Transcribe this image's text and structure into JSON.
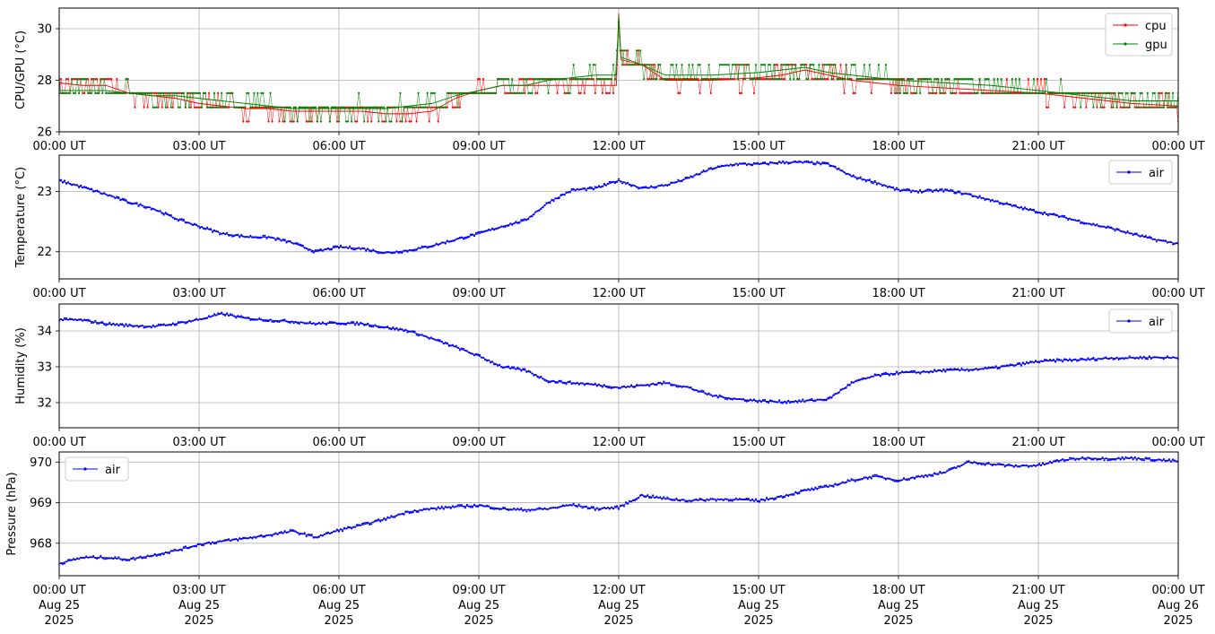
{
  "chart_data": [
    {
      "type": "line",
      "ylabel": "CPU/GPU (°C)",
      "ylim": [
        26,
        30.8
      ],
      "yticks": [
        26,
        28,
        30
      ],
      "legend_position": "upper-right",
      "grid": true,
      "series": [
        {
          "name": "cpu",
          "color": "#ff0000",
          "x": [
            0,
            0.5,
            1,
            1.5,
            2,
            2.5,
            3,
            3.5,
            4,
            4.5,
            5,
            5.5,
            6,
            6.5,
            7,
            7.5,
            8,
            8.5,
            9,
            9.5,
            10,
            10.5,
            11,
            11.5,
            11.95,
            12,
            12.05,
            12.5,
            13,
            14,
            15,
            15.5,
            16,
            16.5,
            17,
            18,
            19,
            20,
            21,
            22,
            23,
            24
          ],
          "y": [
            27.9,
            27.8,
            27.8,
            27.5,
            27.4,
            27.3,
            27.1,
            27.0,
            26.9,
            26.9,
            26.8,
            26.8,
            26.8,
            26.8,
            26.7,
            26.7,
            26.8,
            27.3,
            27.6,
            27.8,
            27.8,
            27.8,
            27.8,
            27.8,
            27.8,
            30.6,
            28.8,
            28.6,
            28.0,
            28.0,
            28.1,
            28.2,
            28.4,
            28.2,
            28.0,
            27.8,
            27.7,
            27.6,
            27.5,
            27.3,
            27.1,
            27.0
          ]
        },
        {
          "name": "gpu",
          "color": "#008000",
          "x": [
            0,
            0.5,
            1,
            1.5,
            2,
            2.5,
            3,
            3.5,
            4,
            4.5,
            5,
            5.5,
            6,
            6.5,
            7,
            7.5,
            8,
            8.5,
            9,
            9.5,
            10,
            10.5,
            11,
            11.5,
            11.95,
            12,
            12.05,
            12.5,
            13,
            14,
            15,
            15.5,
            16,
            16.5,
            17,
            18,
            19,
            20,
            21,
            22,
            23,
            24
          ],
          "y": [
            27.6,
            27.6,
            27.6,
            27.5,
            27.4,
            27.4,
            27.3,
            27.2,
            27.1,
            27.0,
            26.9,
            26.9,
            26.9,
            26.9,
            26.9,
            27.0,
            27.1,
            27.4,
            27.6,
            27.8,
            27.8,
            28.0,
            28.1,
            28.2,
            28.2,
            30.5,
            28.9,
            28.6,
            28.2,
            28.2,
            28.3,
            28.4,
            28.5,
            28.3,
            28.2,
            28.0,
            27.9,
            27.8,
            27.6,
            27.4,
            27.2,
            27.2
          ]
        }
      ]
    },
    {
      "type": "line",
      "ylabel": "Temperature (°C)",
      "ylim": [
        21.55,
        23.6
      ],
      "yticks": [
        22,
        23
      ],
      "legend_position": "upper-right",
      "grid": true,
      "series": [
        {
          "name": "air",
          "color": "#0000ff",
          "x": [
            0,
            0.5,
            1,
            1.5,
            2,
            2.5,
            3,
            3.5,
            4,
            4.5,
            5,
            5.5,
            6,
            6.5,
            7,
            7.5,
            8,
            8.5,
            9,
            9.5,
            10,
            10.5,
            11,
            11.5,
            12,
            12.5,
            13,
            13.5,
            14,
            14.5,
            15,
            15.5,
            16,
            16.5,
            17,
            17.5,
            18,
            18.5,
            19,
            19.5,
            20,
            20.5,
            21,
            21.5,
            22,
            22.5,
            23,
            23.5,
            24
          ],
          "y": [
            23.18,
            23.07,
            22.95,
            22.82,
            22.72,
            22.55,
            22.42,
            22.3,
            22.25,
            22.24,
            22.15,
            22.0,
            22.08,
            22.05,
            21.98,
            22.02,
            22.1,
            22.2,
            22.3,
            22.42,
            22.52,
            22.82,
            23.02,
            23.05,
            23.18,
            23.05,
            23.1,
            23.22,
            23.38,
            23.45,
            23.45,
            23.48,
            23.48,
            23.45,
            23.25,
            23.15,
            23.02,
            23.0,
            23.02,
            22.95,
            22.85,
            22.75,
            22.66,
            22.58,
            22.48,
            22.4,
            22.3,
            22.2,
            22.13
          ]
        }
      ]
    },
    {
      "type": "line",
      "ylabel": "Humidity (%)",
      "ylim": [
        31.3,
        34.75
      ],
      "yticks": [
        32,
        33,
        34
      ],
      "legend_position": "upper-right",
      "grid": true,
      "series": [
        {
          "name": "air",
          "color": "#0000ff",
          "x": [
            0,
            0.5,
            1,
            1.5,
            2,
            2.5,
            3,
            3.5,
            4,
            4.5,
            5,
            5.5,
            6,
            6.5,
            7,
            7.5,
            8,
            8.5,
            9,
            9.5,
            10,
            10.5,
            11,
            11.5,
            12,
            12.5,
            13,
            13.5,
            14,
            14.5,
            15,
            15.5,
            16,
            16.5,
            17,
            17.5,
            18,
            18.5,
            19,
            19.5,
            20,
            20.5,
            21,
            21.5,
            22,
            22.5,
            23,
            23.5,
            24
          ],
          "y": [
            34.32,
            34.3,
            34.2,
            34.15,
            34.12,
            34.2,
            34.32,
            34.48,
            34.35,
            34.3,
            34.26,
            34.2,
            34.22,
            34.2,
            34.1,
            34.0,
            33.78,
            33.55,
            33.3,
            33.0,
            32.9,
            32.6,
            32.55,
            32.5,
            32.42,
            32.48,
            32.55,
            32.42,
            32.2,
            32.1,
            32.05,
            32.02,
            32.05,
            32.1,
            32.55,
            32.75,
            32.83,
            32.85,
            32.9,
            32.92,
            32.96,
            33.05,
            33.15,
            33.18,
            33.2,
            33.24,
            33.25,
            33.26,
            33.25
          ]
        }
      ]
    },
    {
      "type": "line",
      "ylabel": "Pressure (hPa)",
      "ylim": [
        967.2,
        970.25
      ],
      "yticks": [
        968,
        969,
        970
      ],
      "legend_position": "upper-left",
      "grid": true,
      "series": [
        {
          "name": "air",
          "color": "#0000ff",
          "x": [
            0,
            0.5,
            1,
            1.5,
            2,
            2.5,
            3,
            3.5,
            4,
            4.5,
            5,
            5.5,
            6,
            6.5,
            7,
            7.5,
            8,
            8.5,
            9,
            9.5,
            10,
            10.5,
            11,
            11.5,
            12,
            12.5,
            13,
            13.5,
            14,
            14.5,
            15,
            15.5,
            16,
            16.5,
            17,
            17.5,
            18,
            18.5,
            19,
            19.5,
            20,
            20.5,
            21,
            21.5,
            22,
            22.5,
            23,
            23.5,
            24
          ],
          "y": [
            967.5,
            967.65,
            967.65,
            967.6,
            967.7,
            967.82,
            967.97,
            968.05,
            968.12,
            968.2,
            968.3,
            968.15,
            968.32,
            968.45,
            968.6,
            968.78,
            968.85,
            968.9,
            968.93,
            968.85,
            968.82,
            968.85,
            968.95,
            968.85,
            968.88,
            969.18,
            969.1,
            969.05,
            969.08,
            969.08,
            969.05,
            969.15,
            969.3,
            969.4,
            969.55,
            969.65,
            969.55,
            969.65,
            969.75,
            970.0,
            969.95,
            969.9,
            969.92,
            970.05,
            970.1,
            970.08,
            970.1,
            970.06,
            970.02
          ]
        }
      ]
    }
  ],
  "x_axis": {
    "ticks": [
      "00:00 UT",
      "03:00 UT",
      "06:00 UT",
      "09:00 UT",
      "12:00 UT",
      "15:00 UT",
      "18:00 UT",
      "21:00 UT",
      "00:00 UT"
    ],
    "tick_hours": [
      0,
      3,
      6,
      9,
      12,
      15,
      18,
      21,
      24
    ],
    "bottom_dates": [
      "Aug 25",
      "Aug 25",
      "Aug 25",
      "Aug 25",
      "Aug 25",
      "Aug 25",
      "Aug 25",
      "Aug 25",
      "Aug 26"
    ],
    "bottom_year": "2025"
  }
}
